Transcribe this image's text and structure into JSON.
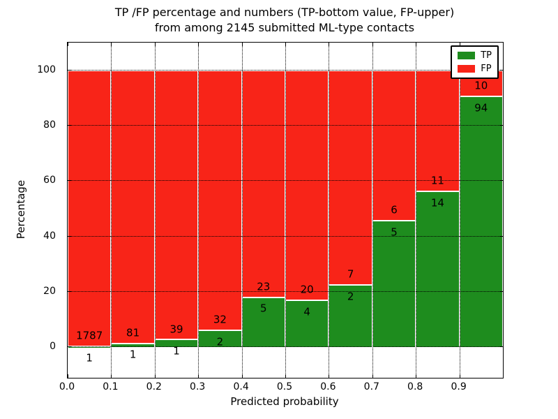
{
  "chart_data": {
    "type": "bar",
    "stacked": true,
    "normalized": "percent_of_bin_total",
    "title_lines": [
      "TP /FP percentage and numbers (TP-bottom value, FP-upper)",
      "from among 2145 submitted ML-type contacts"
    ],
    "total_contacts": 2145,
    "xlabel": "Predicted probability",
    "ylabel": "Percentage",
    "categories": [
      "0.0-0.1",
      "0.1-0.2",
      "0.2-0.3",
      "0.3-0.4",
      "0.4-0.5",
      "0.5-0.6",
      "0.6-0.7",
      "0.7-0.8",
      "0.8-0.9",
      "0.9-1.0"
    ],
    "series": [
      {
        "name": "TP",
        "color": "#1e8c1e",
        "counts": [
          1,
          1,
          1,
          2,
          5,
          4,
          2,
          5,
          14,
          94
        ]
      },
      {
        "name": "FP",
        "color": "#f82418",
        "counts": [
          1787,
          81,
          39,
          32,
          23,
          20,
          7,
          6,
          11,
          10
        ]
      }
    ],
    "x_ticks": [
      "0.0",
      "0.1",
      "0.2",
      "0.3",
      "0.4",
      "0.5",
      "0.6",
      "0.7",
      "0.8",
      "0.9"
    ],
    "y_ticks": [
      0,
      20,
      40,
      60,
      80,
      100
    ],
    "xlim": [
      0.0,
      1.0
    ],
    "ylim": [
      -11,
      110
    ],
    "grid": "dotted",
    "legend_position": "upper right",
    "label_offset_pct": 4
  }
}
